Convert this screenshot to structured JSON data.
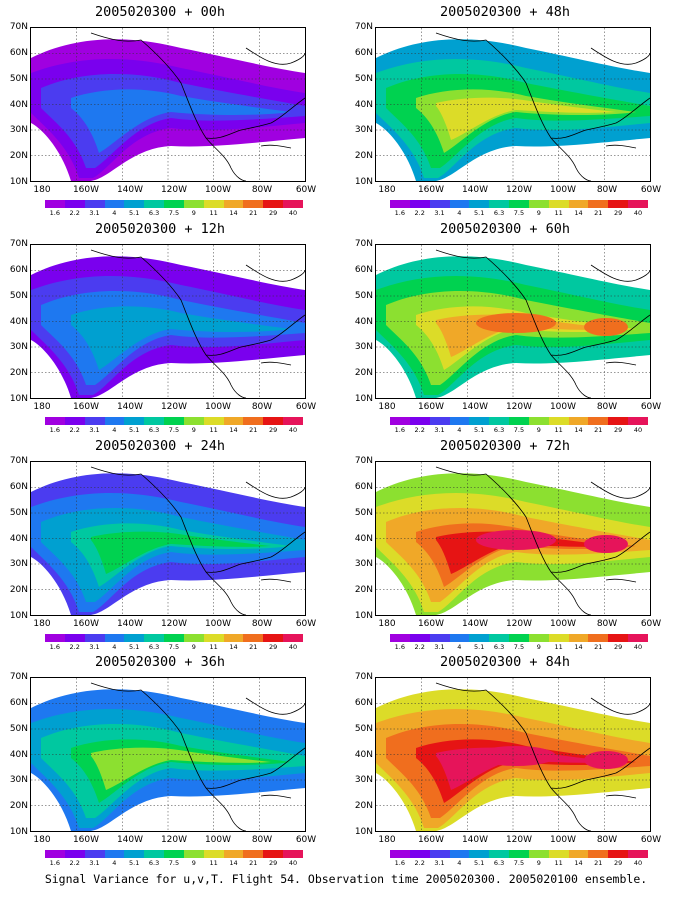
{
  "panels": [
    {
      "title": "2005020300 + 00h"
    },
    {
      "title": "2005020300 + 48h"
    },
    {
      "title": "2005020300 + 12h"
    },
    {
      "title": "2005020300 + 60h"
    },
    {
      "title": "2005020300 + 24h"
    },
    {
      "title": "2005020300 + 72h"
    },
    {
      "title": "2005020300 + 36h"
    },
    {
      "title": "2005020300 + 84h"
    }
  ],
  "y_labels": [
    "70N",
    "60N",
    "50N",
    "40N",
    "30N",
    "20N",
    "10N"
  ],
  "x_labels": [
    "180",
    "160W",
    "140W",
    "120W",
    "100W",
    "80W",
    "60W"
  ],
  "colorbar": {
    "labels": [
      "1.6",
      "2.2",
      "3.1",
      "4",
      "5.1",
      "6.3",
      "7.5",
      "9",
      "11",
      "14",
      "21",
      "29",
      "40"
    ],
    "colors": [
      "#a000e0",
      "#7a00ee",
      "#4b3cf0",
      "#1e78f0",
      "#00a0d0",
      "#00c8a0",
      "#00d250",
      "#8ce030",
      "#dcdc28",
      "#f0a828",
      "#f06e1e",
      "#e61414",
      "#e6145a"
    ]
  },
  "caption": "Signal Variance for u,v,T. Flight 54. Observation time 2005020300. 2005020100 ensemble."
}
